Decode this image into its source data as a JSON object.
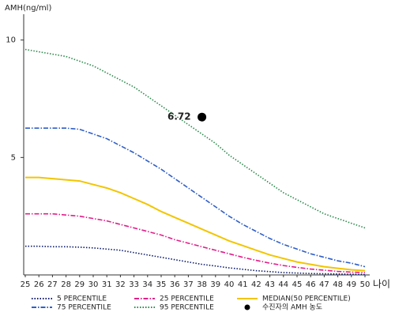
{
  "chart_data": {
    "type": "line",
    "y_label": "AMH(ng/ml)",
    "x_label": "나이",
    "x": [
      25,
      26,
      27,
      28,
      29,
      30,
      31,
      32,
      33,
      34,
      35,
      36,
      37,
      38,
      39,
      40,
      41,
      42,
      43,
      44,
      45,
      46,
      47,
      48,
      49,
      50
    ],
    "xlim": [
      25,
      50
    ],
    "xticks": [
      25,
      26,
      27,
      28,
      29,
      30,
      31,
      32,
      33,
      34,
      35,
      36,
      37,
      38,
      39,
      40,
      41,
      42,
      43,
      44,
      45,
      46,
      47,
      48,
      49,
      50
    ],
    "ylim": [
      0,
      11.2
    ],
    "yticks": [
      5,
      10
    ],
    "series": [
      {
        "name": "5 PERCENTILE",
        "color": "#0a1a6e",
        "dash": "dotted",
        "values": [
          1.22,
          1.22,
          1.2,
          1.2,
          1.18,
          1.15,
          1.1,
          1.05,
          0.95,
          0.85,
          0.75,
          0.65,
          0.55,
          0.45,
          0.38,
          0.3,
          0.24,
          0.18,
          0.14,
          0.1,
          0.08,
          0.06,
          0.05,
          0.04,
          0.03,
          0.02
        ]
      },
      {
        "name": "25 PERCENTILE",
        "color": "#e0208a",
        "dash": "dashdot",
        "values": [
          2.6,
          2.6,
          2.6,
          2.55,
          2.5,
          2.4,
          2.3,
          2.15,
          2.0,
          1.85,
          1.7,
          1.5,
          1.35,
          1.2,
          1.05,
          0.9,
          0.75,
          0.62,
          0.5,
          0.4,
          0.32,
          0.25,
          0.2,
          0.15,
          0.12,
          0.1
        ]
      },
      {
        "name": "MEDIAN(50 PERCENTILE)",
        "color": "#f2c500",
        "dash": "solid",
        "values": [
          4.15,
          4.15,
          4.1,
          4.05,
          4.0,
          3.85,
          3.7,
          3.5,
          3.25,
          3.0,
          2.7,
          2.45,
          2.2,
          1.95,
          1.7,
          1.45,
          1.25,
          1.05,
          0.85,
          0.7,
          0.55,
          0.45,
          0.35,
          0.28,
          0.22,
          0.18
        ]
      },
      {
        "name": "75 PERCENTILE",
        "color": "#2f5fc8",
        "dash": "dashdot",
        "values": [
          6.25,
          6.25,
          6.25,
          6.25,
          6.2,
          6.0,
          5.8,
          5.5,
          5.2,
          4.85,
          4.5,
          4.1,
          3.7,
          3.3,
          2.9,
          2.5,
          2.15,
          1.85,
          1.55,
          1.3,
          1.1,
          0.9,
          0.75,
          0.6,
          0.5,
          0.35
        ]
      },
      {
        "name": "95 PERCENTILE",
        "color": "#2a8a4a",
        "dash": "dotted",
        "values": [
          9.6,
          9.5,
          9.4,
          9.3,
          9.1,
          8.9,
          8.6,
          8.3,
          8.0,
          7.6,
          7.2,
          6.8,
          6.4,
          6.0,
          5.6,
          5.1,
          4.7,
          4.3,
          3.9,
          3.5,
          3.2,
          2.9,
          2.6,
          2.4,
          2.2,
          2.0
        ]
      }
    ],
    "patient": {
      "name": "수진자의 AMH 농도",
      "x": 38,
      "value": 6.72,
      "color": "#000000"
    }
  }
}
